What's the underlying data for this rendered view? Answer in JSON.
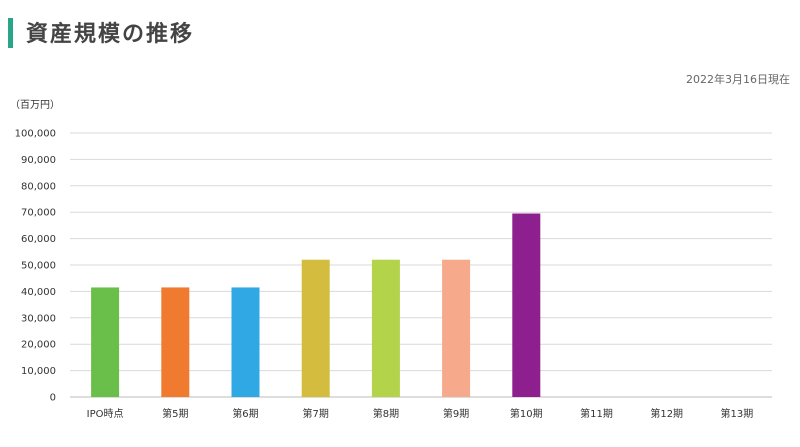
{
  "title": "資産規模の推移",
  "as_of": "2022年3月16日現在",
  "colors": {
    "accent": "#2aa58a",
    "grid": "#d9d9d9"
  },
  "chart_data": {
    "type": "bar",
    "unit_label": "（百万円）",
    "categories": [
      "IPO時点",
      "第5期",
      "第6期",
      "第7期",
      "第8期",
      "第9期",
      "第10期",
      "第11期",
      "第12期",
      "第13期"
    ],
    "values": [
      41500,
      41500,
      41500,
      52000,
      52000,
      52000,
      69500,
      null,
      null,
      null
    ],
    "colors": [
      "#6abf4b",
      "#f07a30",
      "#2fa8e4",
      "#d4bd3e",
      "#b3d34a",
      "#f6a98b",
      "#8e1f8e",
      null,
      null,
      null
    ],
    "ylim": [
      0,
      100000
    ],
    "y_ticks": [
      0,
      10000,
      20000,
      30000,
      40000,
      50000,
      60000,
      70000,
      80000,
      90000,
      100000
    ],
    "y_tick_labels": [
      "0",
      "10,000",
      "20,000",
      "30,000",
      "40,000",
      "50,000",
      "60,000",
      "70,000",
      "80,000",
      "90,000",
      "100,000"
    ],
    "grid": true,
    "xlabel": "",
    "ylabel": ""
  }
}
